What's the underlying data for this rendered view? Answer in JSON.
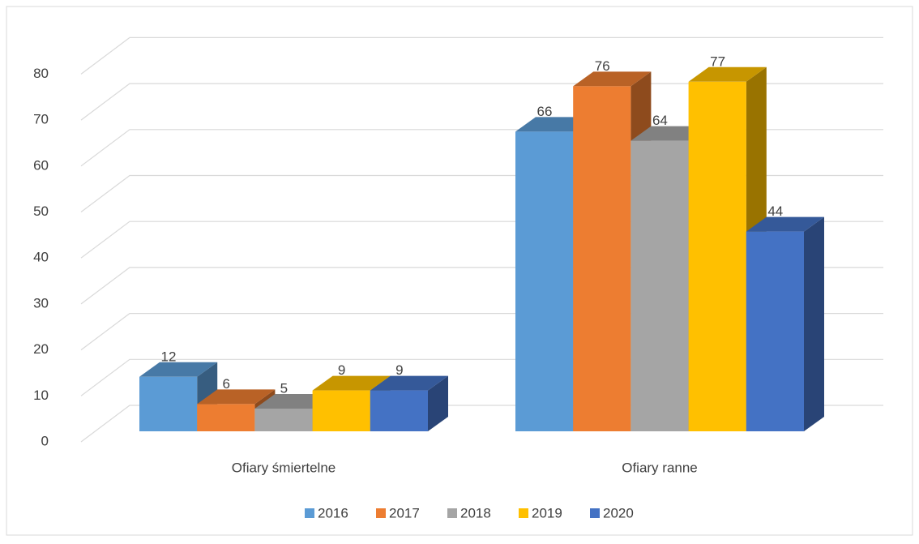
{
  "chart_data": {
    "type": "bar3d",
    "categories": [
      "Ofiary śmiertelne",
      "Ofiary ranne"
    ],
    "series": [
      {
        "name": "2016",
        "color": "#5b9bd5",
        "values": [
          12,
          66
        ]
      },
      {
        "name": "2017",
        "color": "#ed7d31",
        "values": [
          6,
          76
        ]
      },
      {
        "name": "2018",
        "color": "#a5a5a5",
        "values": [
          5,
          64
        ]
      },
      {
        "name": "2019",
        "color": "#ffc000",
        "values": [
          9,
          77
        ]
      },
      {
        "name": "2020",
        "color": "#4472c4",
        "values": [
          9,
          44
        ]
      }
    ],
    "ylim": [
      0,
      80
    ],
    "yticks": [
      0,
      10,
      20,
      30,
      40,
      50,
      60,
      70,
      80
    ],
    "grid": true,
    "legend": "bottom"
  }
}
